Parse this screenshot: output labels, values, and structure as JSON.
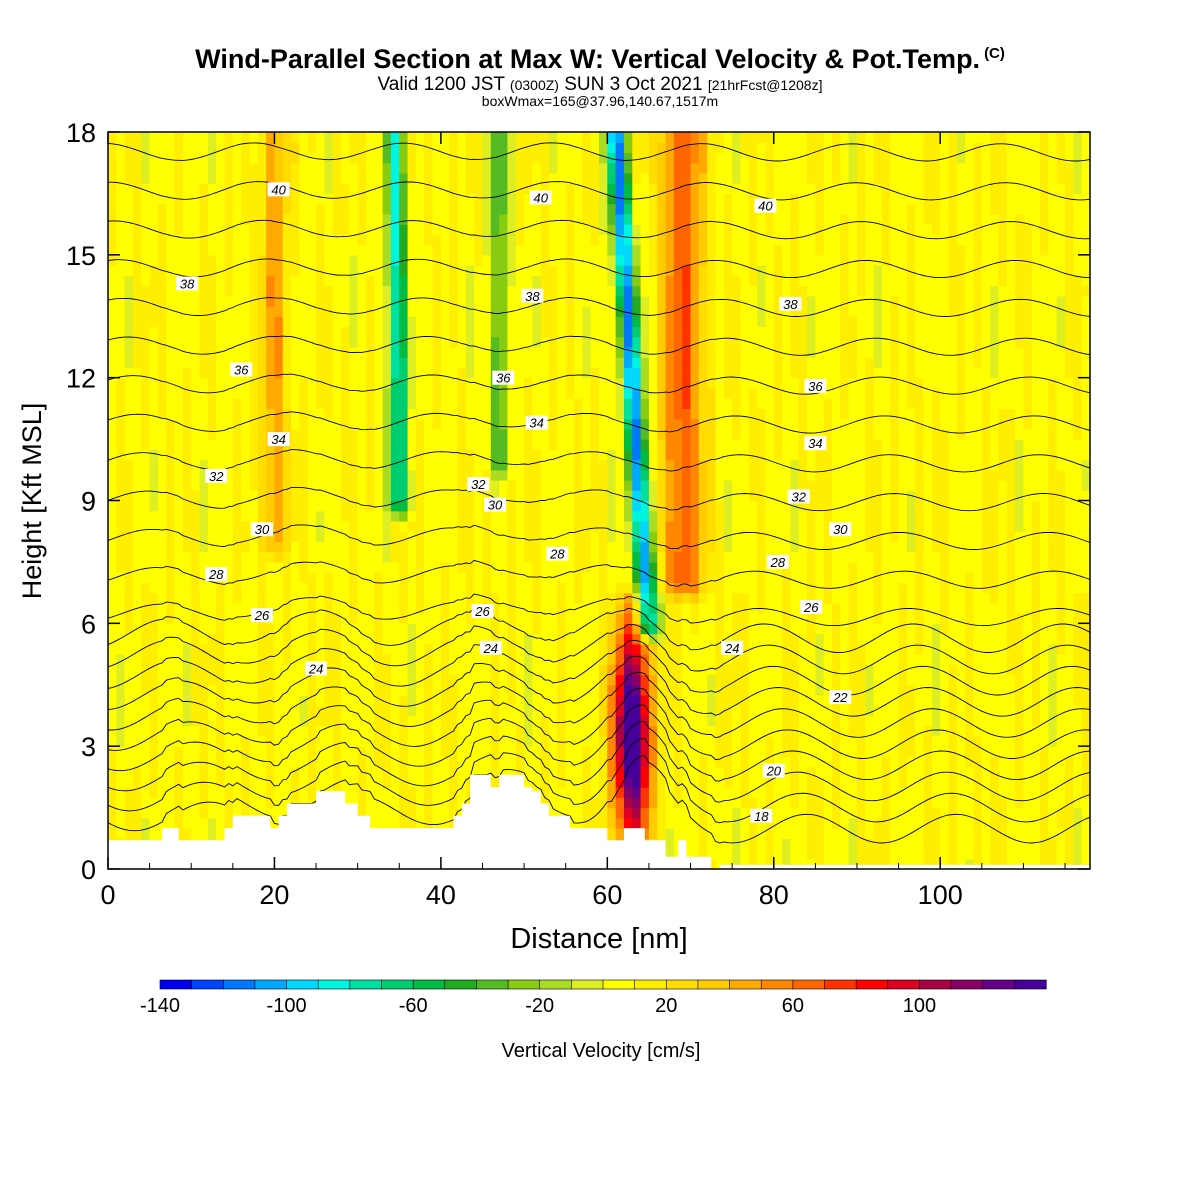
{
  "header": {
    "title": "Wind-Parallel Section at Max W: Vertical Velocity & Pot.Temp.",
    "copyright": "(C)",
    "valid_prefix": "Valid 1200 JST",
    "valid_utc": "(0300Z)",
    "valid_date": "SUN 3 Oct 2021",
    "forecast": "[21hrFcst@1208z]",
    "boxwmax": "boxWmax=165@37.96,140.67,1517m"
  },
  "chart_data": {
    "type": "heatmap",
    "xlabel": "Distance [nm]",
    "ylabel": "Height [Kft MSL]",
    "xlim": [
      0,
      118
    ],
    "ylim": [
      0,
      18
    ],
    "xticks": [
      0,
      20,
      40,
      60,
      80,
      100
    ],
    "yticks": [
      0,
      3,
      6,
      9,
      12,
      15,
      18
    ],
    "colorbar": {
      "label": "Vertical Velocity [cm/s]",
      "min": -140,
      "max": 140,
      "step": 10,
      "tick_values": [
        -140,
        -100,
        -60,
        -20,
        20,
        60,
        100
      ],
      "colors": [
        "#0000ee",
        "#0044ff",
        "#0077ff",
        "#00a8ff",
        "#00d8ff",
        "#00f5e0",
        "#00e0a0",
        "#00cc70",
        "#00bb44",
        "#22aa22",
        "#55bb22",
        "#88cc11",
        "#aadd22",
        "#ddee22",
        "#ffff00",
        "#ffee00",
        "#ffdd00",
        "#ffcc00",
        "#ffaa00",
        "#ff8800",
        "#ff6600",
        "#ff3300",
        "#ff0000",
        "#dd0022",
        "#aa0044",
        "#880066",
        "#660088",
        "#440099"
      ]
    },
    "features": [
      {
        "x": 63,
        "width": 2.2,
        "zmin": 0,
        "zmax": 6.5,
        "value": 150
      },
      {
        "x": 65,
        "width": 1.2,
        "zmin": 6,
        "zmax": 18,
        "value": -120,
        "tilt": -4
      },
      {
        "x": 35,
        "width": 1.1,
        "zmin": 9,
        "zmax": 18,
        "value": -90,
        "tilt": -0.5
      },
      {
        "x": 47,
        "width": 1.0,
        "zmin": 10,
        "zmax": 18,
        "value": -50
      },
      {
        "x": 20,
        "width": 1.5,
        "zmin": 8,
        "zmax": 18,
        "value": 40
      },
      {
        "x": 69,
        "width": 2.5,
        "zmin": 7,
        "zmax": 18,
        "value": 60
      }
    ],
    "terrain": {
      "x": [
        0,
        6.5,
        6.5,
        8.5,
        8.5,
        12,
        12,
        13,
        13,
        14,
        14,
        15,
        15,
        16.5,
        16.5,
        18.5,
        18.5,
        19.5,
        19.5,
        20.5,
        20.5,
        21.5,
        21.5,
        23,
        23,
        25,
        25,
        26,
        26,
        27,
        27,
        28.5,
        28.5,
        30,
        30,
        31.5,
        31.5,
        33,
        33,
        41.5,
        41.5,
        42.5,
        42.5,
        43.5,
        43.5,
        46,
        46,
        47,
        47,
        50,
        50,
        51,
        51,
        52,
        52,
        53,
        53,
        54,
        54,
        55.5,
        55.5,
        60,
        60,
        61,
        61,
        62,
        62,
        64.5,
        64.5,
        67,
        67,
        68.5,
        68.5,
        69.5,
        69.5,
        72.5,
        72.5,
        73.5,
        73.5,
        118
      ],
      "h": [
        0.7,
        0.7,
        1.0,
        1.0,
        0.7,
        0.7,
        0.7,
        0.7,
        0.7,
        0.7,
        1.0,
        1.0,
        1.3,
        1.3,
        1.3,
        1.3,
        1.3,
        1.3,
        1.0,
        1.0,
        1.3,
        1.3,
        1.6,
        1.6,
        1.6,
        1.6,
        1.9,
        1.9,
        1.9,
        1.9,
        1.9,
        1.9,
        1.6,
        1.6,
        1.3,
        1.3,
        1.0,
        1.0,
        1.0,
        1.0,
        1.3,
        1.3,
        1.6,
        1.6,
        2.3,
        2.3,
        2.0,
        2.0,
        2.3,
        2.3,
        2.0,
        2.0,
        1.9,
        1.9,
        1.6,
        1.6,
        1.3,
        1.3,
        1.3,
        1.3,
        1.0,
        1.0,
        0.7,
        0.7,
        0.7,
        0.7,
        1.0,
        1.0,
        0.7,
        0.7,
        0.3,
        0.3,
        0.7,
        0.7,
        0.3,
        0.3,
        0,
        0,
        0.1,
        0.1
      ]
    },
    "contours": [
      {
        "value": 18,
        "label": "18"
      },
      {
        "value": 20,
        "label": "20"
      },
      {
        "value": 22,
        "label": "22"
      },
      {
        "value": 24,
        "label": "24"
      },
      {
        "value": 26,
        "label": "26"
      },
      {
        "value": 28,
        "label": "28"
      },
      {
        "value": 30,
        "label": "30"
      },
      {
        "value": 32,
        "label": "32"
      },
      {
        "value": 34,
        "label": "34"
      },
      {
        "value": 36,
        "label": "36"
      },
      {
        "value": 38,
        "label": "38"
      },
      {
        "value": 40,
        "label": "40"
      }
    ],
    "contour_labels": [
      {
        "text": "40",
        "x": 20.5,
        "y": 16.6
      },
      {
        "text": "40",
        "x": 52,
        "y": 16.4
      },
      {
        "text": "40",
        "x": 79,
        "y": 16.2
      },
      {
        "text": "38",
        "x": 9.5,
        "y": 14.3
      },
      {
        "text": "38",
        "x": 51,
        "y": 14.0
      },
      {
        "text": "38",
        "x": 82,
        "y": 13.8
      },
      {
        "text": "36",
        "x": 16,
        "y": 12.2
      },
      {
        "text": "36",
        "x": 47.5,
        "y": 12.0
      },
      {
        "text": "36",
        "x": 85,
        "y": 11.8
      },
      {
        "text": "34",
        "x": 20.5,
        "y": 10.5
      },
      {
        "text": "34",
        "x": 51.5,
        "y": 10.9
      },
      {
        "text": "34",
        "x": 85,
        "y": 10.4
      },
      {
        "text": "32",
        "x": 13,
        "y": 9.6
      },
      {
        "text": "32",
        "x": 44.5,
        "y": 9.4
      },
      {
        "text": "32",
        "x": 83,
        "y": 9.1
      },
      {
        "text": "30",
        "x": 18.5,
        "y": 8.3
      },
      {
        "text": "30",
        "x": 46.5,
        "y": 8.9
      },
      {
        "text": "30",
        "x": 88,
        "y": 8.3
      },
      {
        "text": "28",
        "x": 13,
        "y": 7.2
      },
      {
        "text": "28",
        "x": 54,
        "y": 7.7
      },
      {
        "text": "28",
        "x": 80.5,
        "y": 7.5
      },
      {
        "text": "26",
        "x": 18.5,
        "y": 6.2
      },
      {
        "text": "26",
        "x": 45,
        "y": 6.3
      },
      {
        "text": "26",
        "x": 84.5,
        "y": 6.4
      },
      {
        "text": "24",
        "x": 25,
        "y": 4.9
      },
      {
        "text": "24",
        "x": 46,
        "y": 5.4
      },
      {
        "text": "24",
        "x": 75,
        "y": 5.4
      },
      {
        "text": "22",
        "x": 88,
        "y": 4.2
      },
      {
        "text": "20",
        "x": 80,
        "y": 2.4
      },
      {
        "text": "18",
        "x": 78.5,
        "y": 1.3
      }
    ]
  }
}
